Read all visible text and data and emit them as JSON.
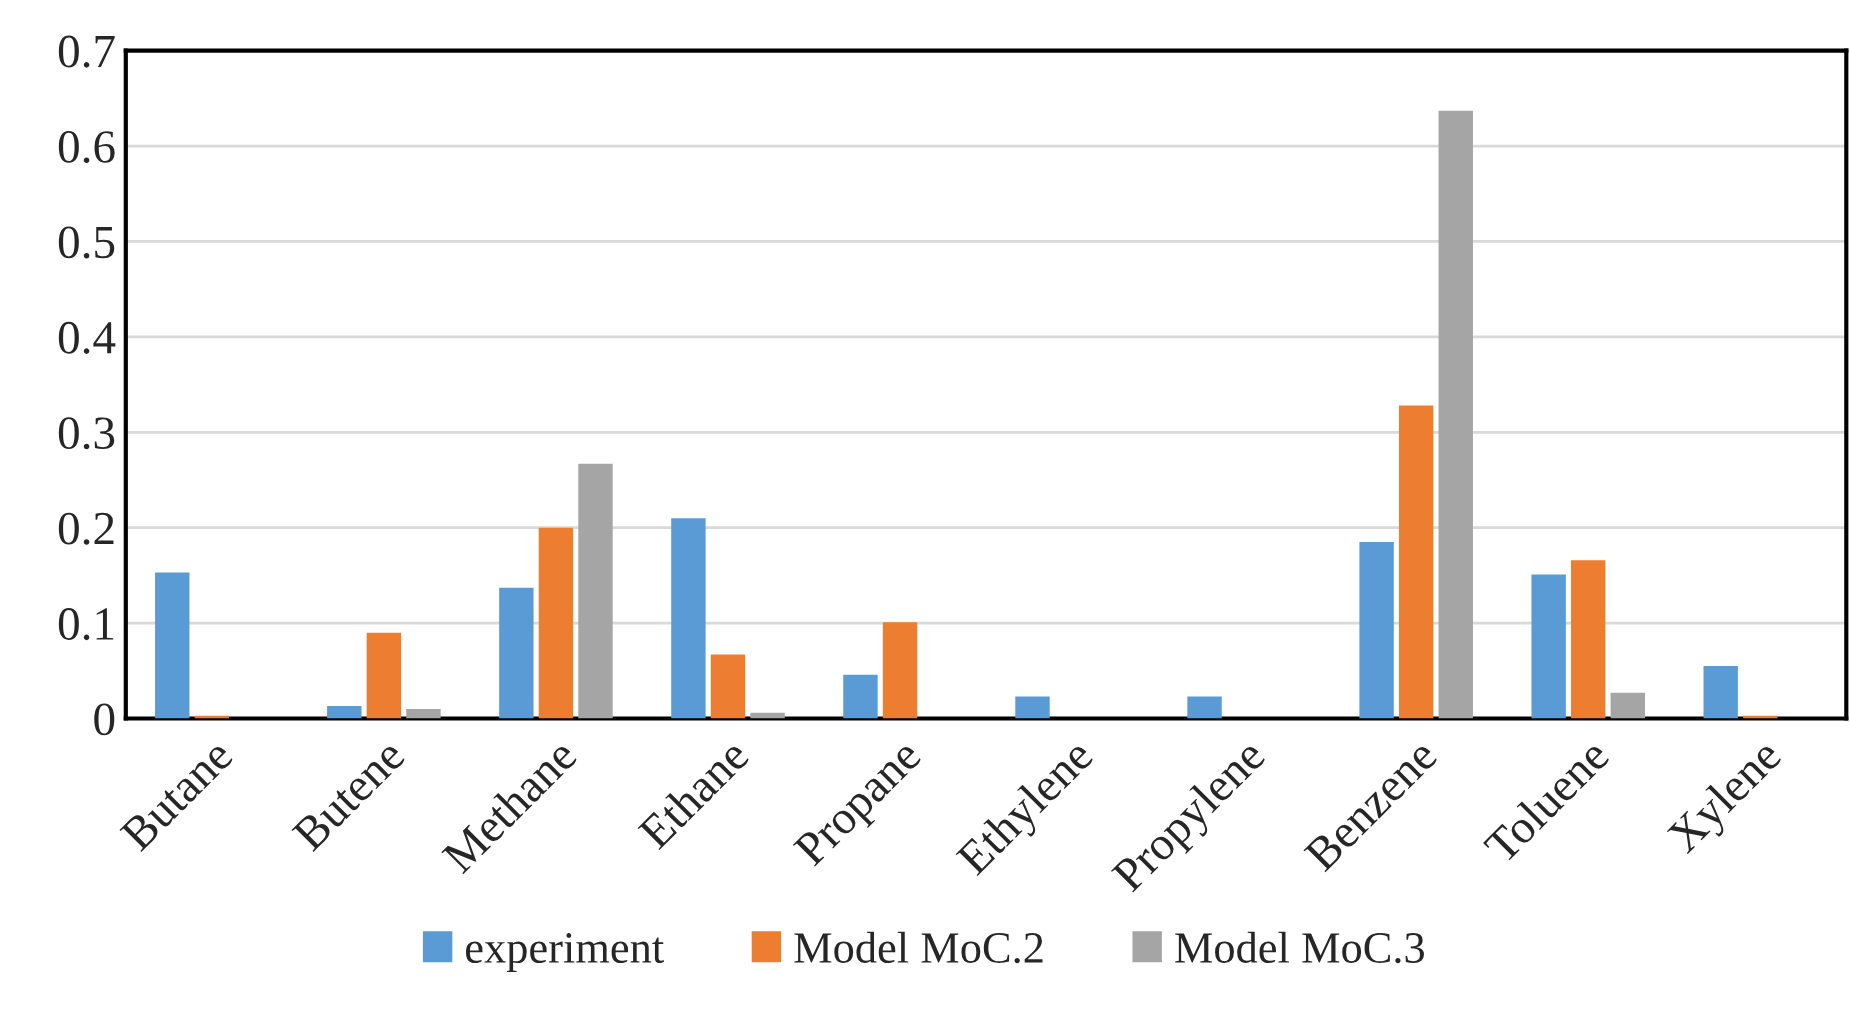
{
  "chart_data": {
    "type": "bar",
    "categories": [
      "Butane",
      "Butene",
      "Methane",
      "Ethane",
      "Propane",
      "Ethylene",
      "Propylene",
      "Benzene",
      "Toluene",
      "Xylene"
    ],
    "series": [
      {
        "name": "experiment",
        "color": "#5b9bd5",
        "values": [
          0.153,
          0.013,
          0.137,
          0.21,
          0.046,
          0.023,
          0.023,
          0.185,
          0.151,
          0.055
        ]
      },
      {
        "name": "Model MoC.2",
        "color": "#ed7d31",
        "values": [
          0.003,
          0.09,
          0.2,
          0.067,
          0.101,
          0,
          0,
          0.328,
          0.166,
          0.003
        ]
      },
      {
        "name": "Model MoC.3",
        "color": "#a5a5a5",
        "values": [
          0,
          0.01,
          0.267,
          0.006,
          0,
          0,
          0,
          0.637,
          0.027,
          0
        ]
      }
    ],
    "ylim": [
      0,
      0.7
    ],
    "yticks": [
      0,
      0.1,
      0.2,
      0.3,
      0.4,
      0.5,
      0.6,
      0.7
    ],
    "grid": "y",
    "legend": "bottom"
  }
}
